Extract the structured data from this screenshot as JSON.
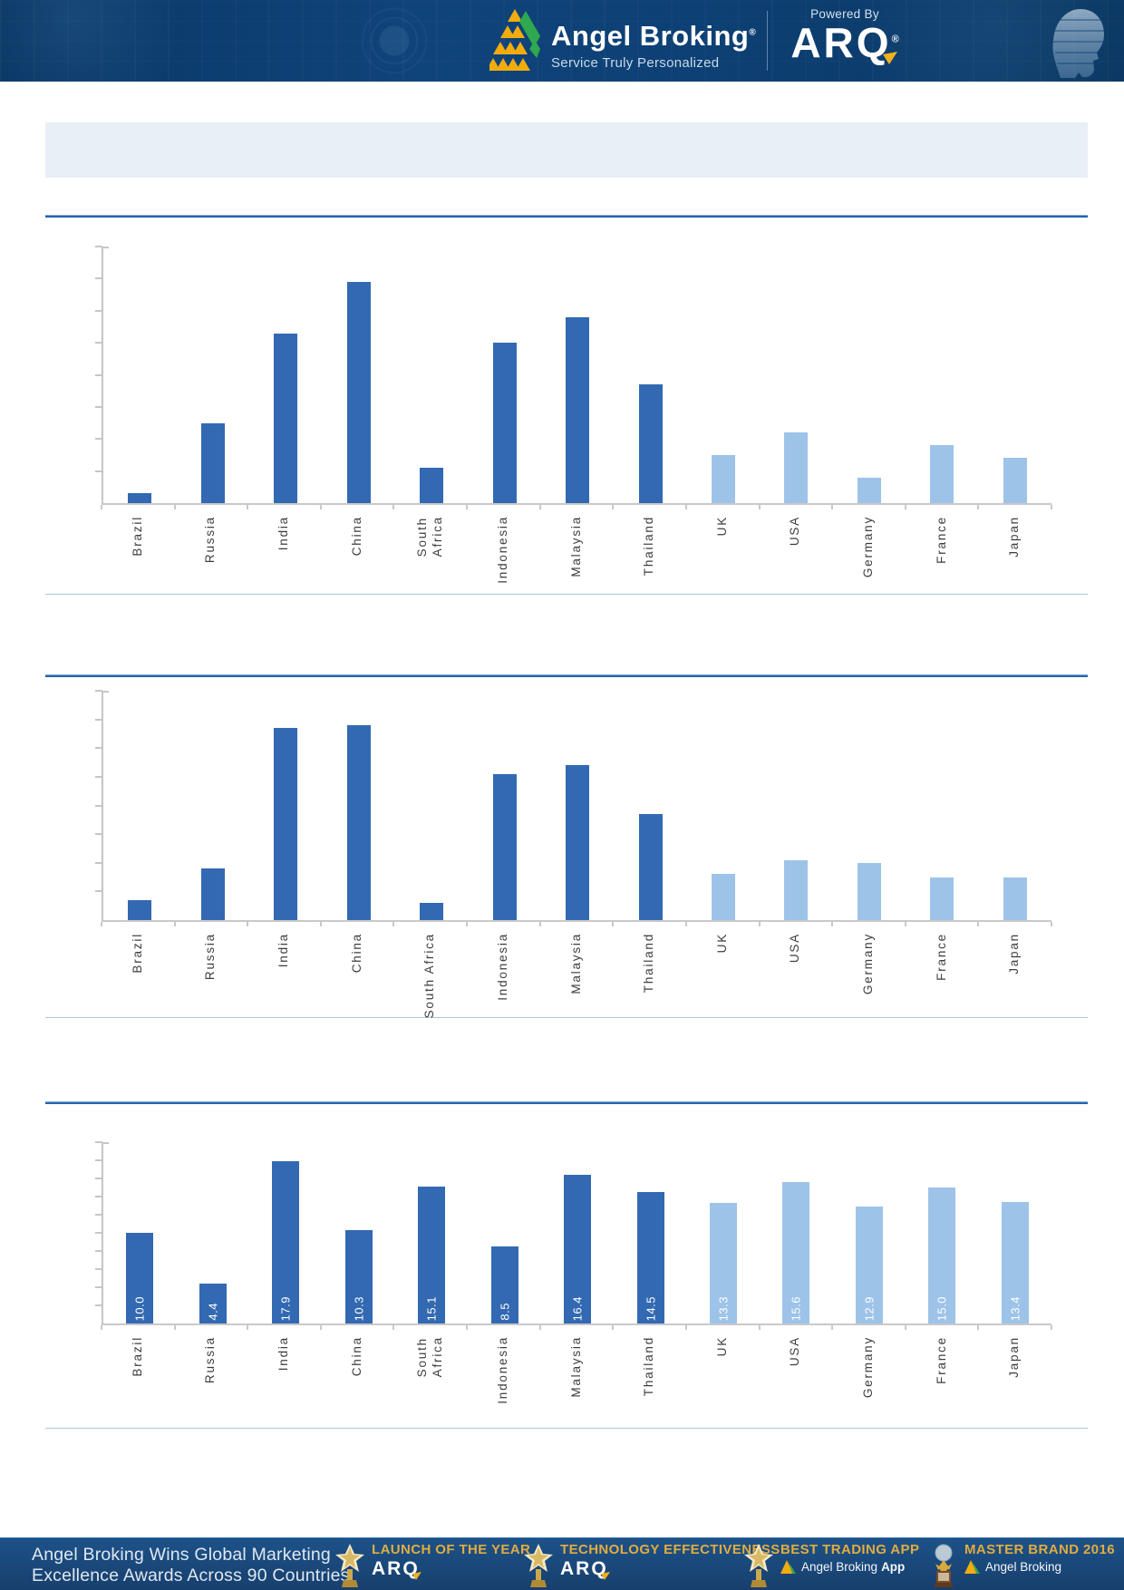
{
  "header": {
    "brand": "Angel Broking",
    "brand_reg": "®",
    "tagline": "Service Truly Personalized",
    "powered_by": "Powered By",
    "product": "ARQ",
    "product_reg": "®"
  },
  "title_box": {
    "text": ""
  },
  "colors": {
    "emerging_bar": "#3269B2",
    "developed_bar": "#9DC3E8",
    "rule_thick": "#2565AE",
    "rule_thin": "#AAC7E2",
    "header_bg": "#0D4074",
    "footer_bg": "#1D5288",
    "award_gold": "#E2AC3F",
    "axis_gray": "#C6C6C6"
  },
  "chart_data": [
    {
      "type": "bar",
      "title": "",
      "xlabel": "",
      "ylabel": "",
      "grid": false,
      "legend": false,
      "axis_value_labels_shown": false,
      "categories": [
        "Brazil",
        "Russia",
        "India",
        "China",
        "South Africa",
        "Indonesia",
        "Malaysia",
        "Thailand",
        "UK",
        "USA",
        "Germany",
        "France",
        "Japan"
      ],
      "values": [
        0.3,
        2.5,
        5.3,
        6.9,
        1.1,
        5.0,
        5.8,
        3.7,
        1.5,
        2.2,
        0.8,
        1.8,
        1.4
      ],
      "ylim": [
        0,
        8
      ],
      "tick_step": 1,
      "emerging_count": 8,
      "value_labels": null,
      "south_africa_two_line": true
    },
    {
      "type": "bar",
      "title": "",
      "xlabel": "",
      "ylabel": "",
      "grid": false,
      "legend": false,
      "axis_value_labels_shown": false,
      "categories": [
        "Brazil",
        "Russia",
        "India",
        "China",
        "South Africa",
        "Indonesia",
        "Malaysia",
        "Thailand",
        "UK",
        "USA",
        "Germany",
        "France",
        "Japan"
      ],
      "values": [
        0.7,
        1.8,
        6.7,
        6.8,
        0.6,
        5.1,
        5.4,
        3.7,
        1.6,
        2.1,
        2.0,
        1.5,
        1.5
      ],
      "ylim": [
        0,
        8
      ],
      "tick_step": 1,
      "emerging_count": 8,
      "value_labels": null,
      "south_africa_two_line": false
    },
    {
      "type": "bar",
      "title": "",
      "xlabel": "",
      "ylabel": "",
      "grid": false,
      "legend": false,
      "axis_value_labels_shown": false,
      "categories": [
        "Brazil",
        "Russia",
        "India",
        "China",
        "South Africa",
        "Indonesia",
        "Malaysia",
        "Thailand",
        "UK",
        "USA",
        "Germany",
        "France",
        "Japan"
      ],
      "values": [
        10.0,
        4.4,
        17.9,
        10.3,
        15.1,
        8.5,
        16.4,
        14.5,
        13.3,
        15.6,
        12.9,
        15.0,
        13.4
      ],
      "ylim": [
        0,
        20
      ],
      "tick_step": 2,
      "emerging_count": 8,
      "value_labels": [
        "10.0",
        "4.4",
        "17.9",
        "10.3",
        "15.1",
        "8.5",
        "16.4",
        "14.5",
        "13.3",
        "15.6",
        "12.9",
        "15.0",
        "13.4"
      ],
      "south_africa_two_line": true
    }
  ],
  "footer": {
    "headline_line1": "Angel Broking Wins Global Marketing",
    "headline_line2": "Excellence Awards Across 90 Countries",
    "awards": [
      {
        "icon": "star-trophy",
        "title": "LAUNCH OF THE YEAR",
        "arq": "ARQ",
        "subtitle": "",
        "subtitle_strong": ""
      },
      {
        "icon": "star-trophy",
        "title": "TECHNOLOGY EFFECTIVENESS",
        "arq": "ARQ",
        "subtitle": "",
        "subtitle_strong": ""
      },
      {
        "icon": "star-trophy",
        "title": "BEST TRADING APP",
        "arq": "",
        "subtitle": "Angel Broking",
        "subtitle_strong": "App"
      },
      {
        "icon": "globe-trophy",
        "title": "MASTER BRAND 2016",
        "arq": "",
        "subtitle": "Angel Broking",
        "subtitle_strong": ""
      }
    ]
  }
}
